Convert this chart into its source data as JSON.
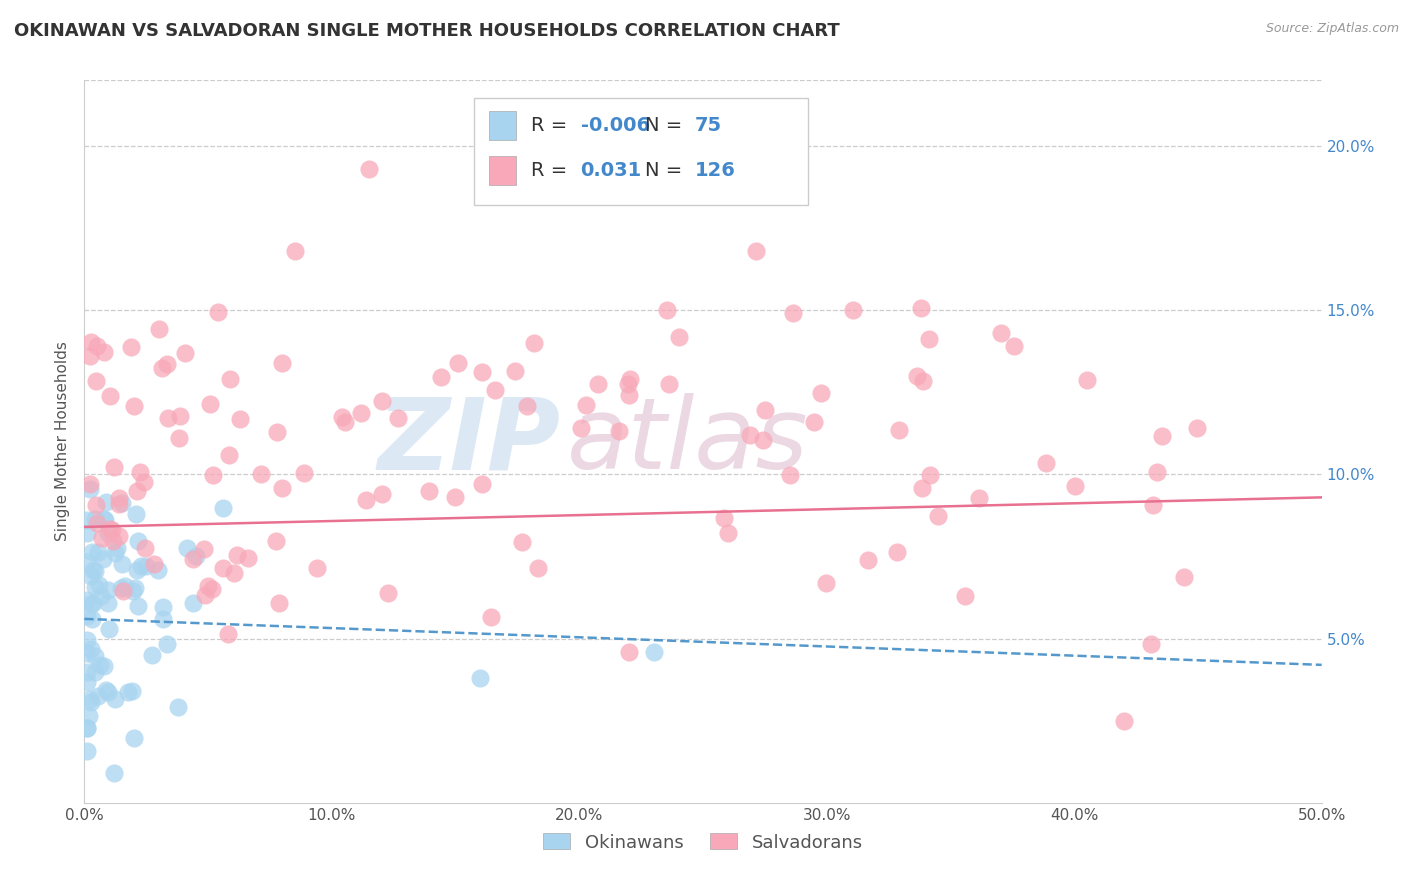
{
  "title": "OKINAWAN VS SALVADORAN SINGLE MOTHER HOUSEHOLDS CORRELATION CHART",
  "source": "Source: ZipAtlas.com",
  "ylabel": "Single Mother Households",
  "legend_label1": "Okinawans",
  "legend_label2": "Salvadorans",
  "R1": "-0.006",
  "N1": 75,
  "R2": "0.031",
  "N2": 126,
  "xlim": [
    0.0,
    0.5
  ],
  "ylim": [
    0.0,
    0.22
  ],
  "xticks": [
    0.0,
    0.1,
    0.2,
    0.3,
    0.4,
    0.5
  ],
  "yticks_right": [
    0.05,
    0.1,
    0.15,
    0.2
  ],
  "color_blue": "#A8D4F0",
  "color_pink": "#F8A8B8",
  "color_blue_line": "#5599CC",
  "color_pink_line": "#E87090",
  "bg_color": "#FFFFFF",
  "title_fontsize": 13,
  "axis_label_fontsize": 11,
  "tick_fontsize": 11,
  "legend_fontsize": 14,
  "blue_line_y0": 0.056,
  "blue_line_y1": 0.042,
  "pink_line_y0": 0.084,
  "pink_line_y1": 0.093
}
